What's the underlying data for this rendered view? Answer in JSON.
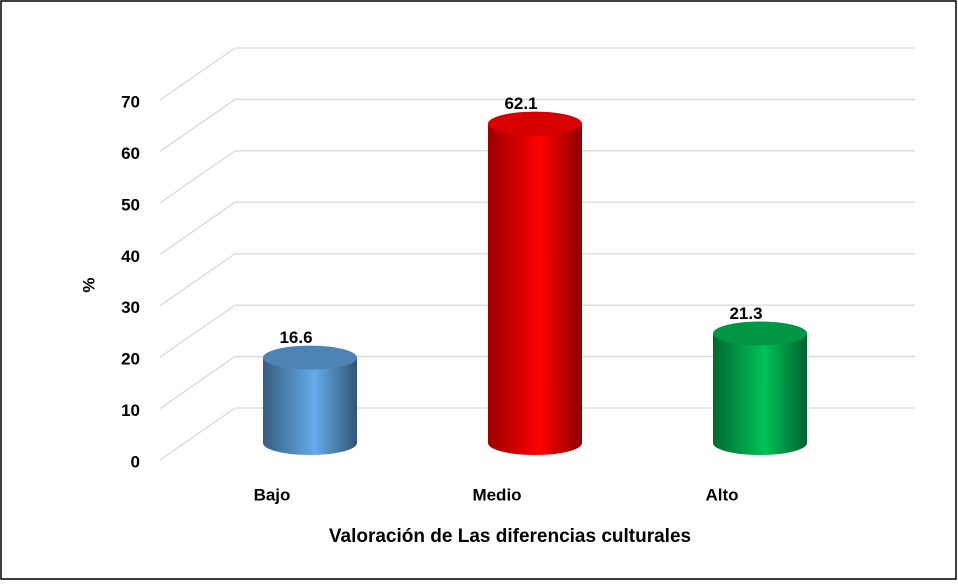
{
  "chart_data": {
    "type": "bar3d",
    "categories": [
      "Bajo",
      "Medio",
      "Alto"
    ],
    "values": [
      16.6,
      62.1,
      21.3
    ],
    "colors": [
      "#5b9bd5",
      "#ff0000",
      "#00b050"
    ],
    "ylim": [
      0,
      70
    ],
    "yticks": [
      0,
      10,
      20,
      30,
      40,
      50,
      60,
      70
    ],
    "ylabel": "%",
    "xlabel": "Valoración de Las diferencias culturales",
    "grid": true
  }
}
